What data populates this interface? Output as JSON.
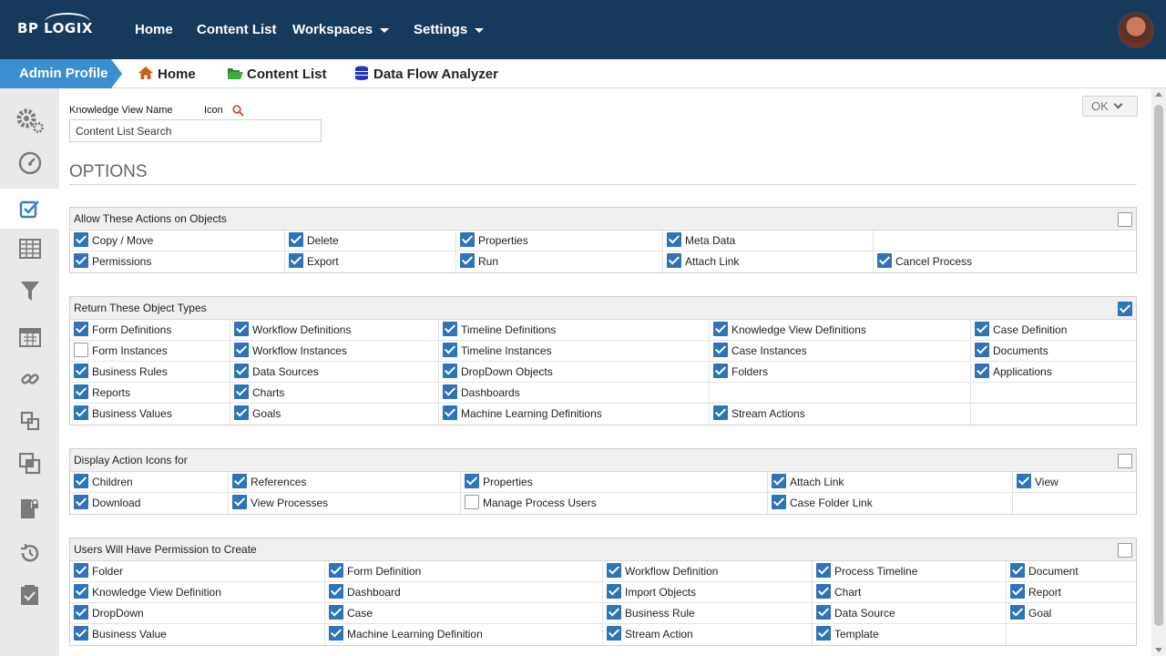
{
  "brand": {
    "logo_text": "BP LOGIX"
  },
  "topnav": {
    "home": "Home",
    "content_list": "Content List",
    "workspaces": "Workspaces",
    "settings": "Settings"
  },
  "subnav": {
    "admin_profile": "Admin Profile",
    "home": "Home",
    "content_list": "Content List",
    "data_flow_analyzer": "Data Flow Analyzer"
  },
  "colors": {
    "topbar": "#163a5c",
    "accent": "#3b8ed0",
    "checkbox": "#2f73b8"
  },
  "rail_icons": [
    "gears-icon",
    "dashboard-gauge-icon",
    "edit-checkbox-icon",
    "table-icon",
    "filter-icon",
    "calendar-icon",
    "link-icon",
    "object-icon",
    "clone-icon",
    "lock-file-icon",
    "history-icon",
    "task-icon"
  ],
  "form": {
    "kv_name_label": "Knowledge View Name",
    "icon_label": "Icon",
    "kv_name_value": "Content List Search",
    "ok_label": "OK",
    "options_title": "OPTIONS"
  },
  "sections": {
    "actions": {
      "title": "Allow These Actions on Objects",
      "header_checked": false,
      "rows": [
        [
          {
            "label": "Copy / Move",
            "checked": true
          },
          {
            "label": "Delete",
            "checked": true
          },
          {
            "label": "Properties",
            "checked": true
          },
          {
            "label": "Meta Data",
            "checked": true
          },
          null
        ],
        [
          {
            "label": "Permissions",
            "checked": true
          },
          {
            "label": "Export",
            "checked": true
          },
          {
            "label": "Run",
            "checked": true
          },
          {
            "label": "Attach Link",
            "checked": true
          },
          {
            "label": "Cancel Process",
            "checked": true
          }
        ]
      ]
    },
    "types": {
      "title": "Return These Object Types",
      "header_checked": true,
      "rows": [
        [
          {
            "label": "Form Definitions",
            "checked": true
          },
          {
            "label": "Workflow Definitions",
            "checked": true
          },
          {
            "label": "Timeline Definitions",
            "checked": true
          },
          {
            "label": "Knowledge View Definitions",
            "checked": true
          },
          {
            "label": "Case Definition",
            "checked": true
          }
        ],
        [
          {
            "label": "Form Instances",
            "checked": false
          },
          {
            "label": "Workflow Instances",
            "checked": true
          },
          {
            "label": "Timeline Instances",
            "checked": true
          },
          {
            "label": "Case Instances",
            "checked": true
          },
          {
            "label": "Documents",
            "checked": true
          }
        ],
        [
          {
            "label": "Business Rules",
            "checked": true
          },
          {
            "label": "Data Sources",
            "checked": true
          },
          {
            "label": "DropDown Objects",
            "checked": true
          },
          {
            "label": "Folders",
            "checked": true
          },
          {
            "label": "Applications",
            "checked": true
          }
        ],
        [
          {
            "label": "Reports",
            "checked": true
          },
          {
            "label": "Charts",
            "checked": true
          },
          {
            "label": "Dashboards",
            "checked": true
          },
          null,
          null
        ],
        [
          {
            "label": "Business Values",
            "checked": true
          },
          {
            "label": "Goals",
            "checked": true
          },
          {
            "label": "Machine Learning Definitions",
            "checked": true
          },
          {
            "label": "Stream Actions",
            "checked": true
          },
          null
        ]
      ]
    },
    "icons": {
      "title": "Display Action Icons for",
      "header_checked": false,
      "rows": [
        [
          {
            "label": "Children",
            "checked": true
          },
          {
            "label": "References",
            "checked": true
          },
          {
            "label": "Properties",
            "checked": true
          },
          {
            "label": "Attach Link",
            "checked": true
          },
          {
            "label": "View",
            "checked": true
          }
        ],
        [
          {
            "label": "Download",
            "checked": true
          },
          {
            "label": "View Processes",
            "checked": true
          },
          {
            "label": "Manage Process Users",
            "checked": false
          },
          {
            "label": "Case Folder Link",
            "checked": true
          },
          null
        ]
      ]
    },
    "create": {
      "title": "Users Will Have Permission to Create",
      "header_checked": false,
      "rows": [
        [
          {
            "label": "Folder",
            "checked": true
          },
          {
            "label": "Form Definition",
            "checked": true
          },
          {
            "label": "Workflow Definition",
            "checked": true
          },
          {
            "label": "Process Timeline",
            "checked": true
          },
          {
            "label": "Document",
            "checked": true
          }
        ],
        [
          {
            "label": "Knowledge View Definition",
            "checked": true
          },
          {
            "label": "Dashboard",
            "checked": true
          },
          {
            "label": "Import Objects",
            "checked": true
          },
          {
            "label": "Chart",
            "checked": true
          },
          {
            "label": "Report",
            "checked": true
          }
        ],
        [
          {
            "label": "DropDown",
            "checked": true
          },
          {
            "label": "Case",
            "checked": true
          },
          {
            "label": "Business Rule",
            "checked": true
          },
          {
            "label": "Data Source",
            "checked": true
          },
          {
            "label": "Goal",
            "checked": true
          }
        ],
        [
          {
            "label": "Business Value",
            "checked": true
          },
          {
            "label": "Machine Learning Definition",
            "checked": true
          },
          {
            "label": "Stream Action",
            "checked": true
          },
          {
            "label": "Template",
            "checked": true
          },
          null
        ]
      ]
    }
  }
}
